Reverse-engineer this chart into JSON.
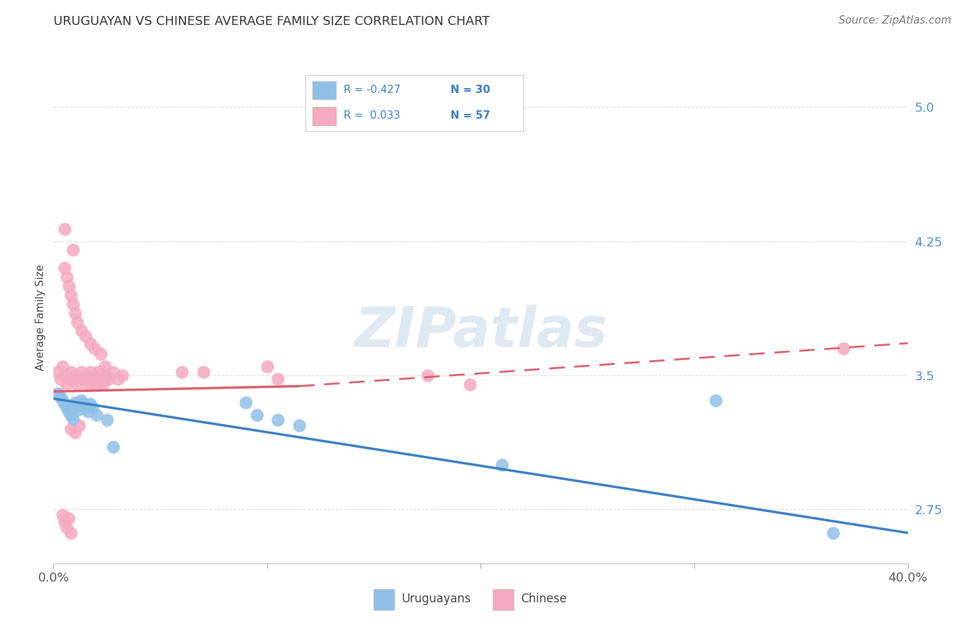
{
  "title": "URUGUAYAN VS CHINESE AVERAGE FAMILY SIZE CORRELATION CHART",
  "source": "Source: ZipAtlas.com",
  "ylabel": "Average Family Size",
  "xlim": [
    0.0,
    0.4
  ],
  "ylim": [
    2.45,
    5.2
  ],
  "yticks": [
    2.75,
    3.5,
    4.25,
    5.0
  ],
  "xticks": [
    0.0,
    0.1,
    0.2,
    0.3,
    0.4
  ],
  "xticklabels": [
    "0.0%",
    "",
    "",
    "",
    "40.0%"
  ],
  "uruguayan_color": "#90c0e8",
  "chinese_color": "#f5aabf",
  "trend_blue": "#3a7fc1",
  "trend_pink": "#d96070",
  "watermark": "ZIPatlas",
  "legend_R_color": "#3a7fc1",
  "legend_N_color": "#3a7fc1",
  "uruguayan_x": [
    0.002,
    0.003,
    0.004,
    0.005,
    0.006,
    0.007,
    0.008,
    0.009,
    0.01,
    0.011,
    0.012,
    0.013,
    0.014,
    0.015,
    0.016,
    0.017,
    0.018,
    0.02,
    0.025,
    0.028,
    0.09,
    0.095,
    0.105,
    0.115,
    0.21,
    0.31,
    0.365
  ],
  "uruguayan_y": [
    3.4,
    3.38,
    3.36,
    3.34,
    3.32,
    3.3,
    3.28,
    3.26,
    3.35,
    3.33,
    3.31,
    3.36,
    3.34,
    3.32,
    3.3,
    3.34,
    3.32,
    3.28,
    3.25,
    3.1,
    3.35,
    3.28,
    3.25,
    3.22,
    3.0,
    3.36,
    2.62
  ],
  "chinese_x": [
    0.002,
    0.003,
    0.004,
    0.005,
    0.005,
    0.006,
    0.007,
    0.008,
    0.009,
    0.009,
    0.01,
    0.011,
    0.012,
    0.013,
    0.014,
    0.015,
    0.016,
    0.017,
    0.018,
    0.019,
    0.02,
    0.021,
    0.022,
    0.023,
    0.024,
    0.025,
    0.026,
    0.028,
    0.03,
    0.032,
    0.005,
    0.006,
    0.007,
    0.008,
    0.009,
    0.01,
    0.011,
    0.013,
    0.015,
    0.017,
    0.019,
    0.022,
    0.008,
    0.01,
    0.012,
    0.004,
    0.005,
    0.006,
    0.007,
    0.008,
    0.07,
    0.105,
    0.175,
    0.195,
    0.37,
    0.06,
    0.1
  ],
  "chinese_y": [
    3.52,
    3.48,
    3.55,
    3.5,
    4.32,
    3.45,
    3.48,
    3.52,
    3.48,
    4.2,
    3.5,
    3.45,
    3.48,
    3.52,
    3.48,
    3.5,
    3.45,
    3.52,
    3.48,
    3.5,
    3.45,
    3.52,
    3.48,
    3.45,
    3.55,
    3.5,
    3.48,
    3.52,
    3.48,
    3.5,
    4.1,
    4.05,
    4.0,
    3.95,
    3.9,
    3.85,
    3.8,
    3.75,
    3.72,
    3.68,
    3.65,
    3.62,
    3.2,
    3.18,
    3.22,
    2.72,
    2.68,
    2.65,
    2.7,
    2.62,
    3.52,
    3.48,
    3.5,
    3.45,
    3.65,
    3.52,
    3.55
  ],
  "blue_trend": [
    0.0,
    0.4,
    3.37,
    2.62
  ],
  "pink_solid": [
    0.0,
    0.115,
    3.41,
    3.44
  ],
  "pink_dashed": [
    0.115,
    0.4,
    3.44,
    3.68
  ]
}
